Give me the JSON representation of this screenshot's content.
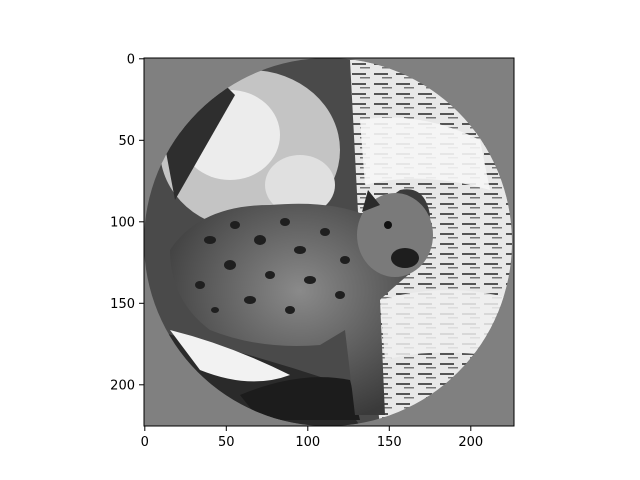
{
  "figure": {
    "kind": "image-display",
    "subject": "grayscale photo of a spotted cougar cub on birch branches, circular crop on a gray background",
    "background_color": "#808080",
    "axes": {
      "x_ticks": [
        "0",
        "50",
        "100",
        "150",
        "200"
      ],
      "y_ticks": [
        "0",
        "50",
        "100",
        "150",
        "200"
      ],
      "x_range": [
        0,
        227
      ],
      "y_range": [
        0,
        227
      ],
      "y_inverted": true
    }
  }
}
